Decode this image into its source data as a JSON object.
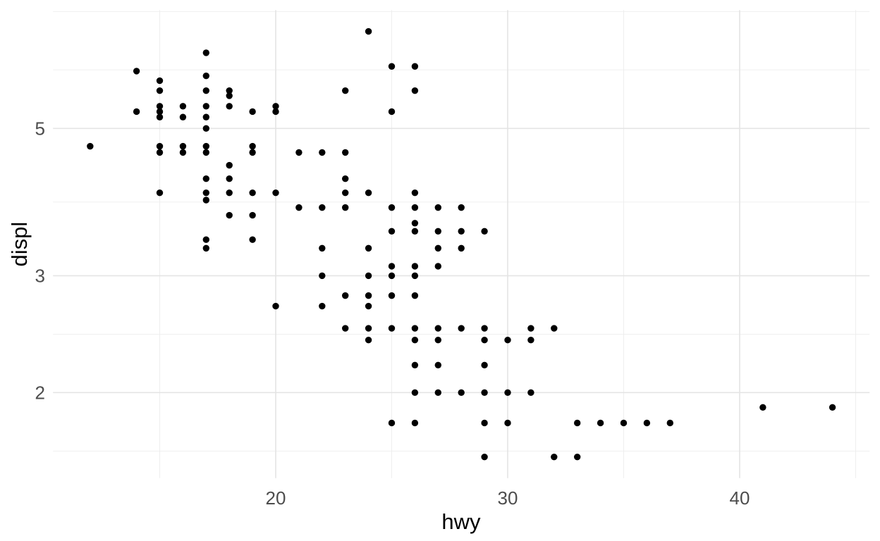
{
  "chart_data": {
    "type": "scatter",
    "title": "",
    "xlabel": "hwy",
    "ylabel": "displ",
    "x_axis": {
      "scale": "linear",
      "range": [
        10.4,
        45.6
      ],
      "ticks": [
        20,
        30,
        40
      ],
      "minor_ticks": [
        15,
        25,
        35,
        45
      ]
    },
    "y_axis": {
      "scale": "log10",
      "range": [
        1.4865,
        7.5357
      ],
      "ticks": [
        2,
        3,
        5
      ],
      "minor_ticks": [
        1.633,
        2.449,
        3.873,
        6.126,
        7.5
      ]
    },
    "grid": "on",
    "legend": "none",
    "points": [
      [
        12,
        4.7
      ],
      [
        14,
        5.3
      ],
      [
        14,
        6.1
      ],
      [
        15,
        4.0
      ],
      [
        15,
        4.6
      ],
      [
        15,
        4.7
      ],
      [
        15,
        5.2
      ],
      [
        15,
        5.3
      ],
      [
        15,
        5.4
      ],
      [
        15,
        5.7
      ],
      [
        15,
        5.9
      ],
      [
        16,
        4.6
      ],
      [
        16,
        4.7
      ],
      [
        16,
        5.2
      ],
      [
        16,
        5.4
      ],
      [
        17,
        3.3
      ],
      [
        17,
        3.4
      ],
      [
        17,
        3.9
      ],
      [
        17,
        4.0
      ],
      [
        17,
        4.2
      ],
      [
        17,
        4.6
      ],
      [
        17,
        4.7
      ],
      [
        17,
        5.0
      ],
      [
        17,
        5.2
      ],
      [
        17,
        5.4
      ],
      [
        17,
        5.7
      ],
      [
        17,
        6.0
      ],
      [
        17,
        6.5
      ],
      [
        18,
        3.7
      ],
      [
        18,
        4.0
      ],
      [
        18,
        4.2
      ],
      [
        18,
        4.4
      ],
      [
        18,
        5.4
      ],
      [
        18,
        5.6
      ],
      [
        18,
        5.7
      ],
      [
        19,
        3.4
      ],
      [
        19,
        3.7
      ],
      [
        19,
        4.0
      ],
      [
        19,
        4.6
      ],
      [
        19,
        4.7
      ],
      [
        19,
        5.3
      ],
      [
        20,
        2.7
      ],
      [
        20,
        4.0
      ],
      [
        20,
        5.3
      ],
      [
        20,
        5.4
      ],
      [
        21,
        3.8
      ],
      [
        21,
        4.6
      ],
      [
        22,
        2.7
      ],
      [
        22,
        3.0
      ],
      [
        22,
        3.3
      ],
      [
        22,
        3.8
      ],
      [
        22,
        4.6
      ],
      [
        23,
        2.5
      ],
      [
        23,
        2.8
      ],
      [
        23,
        3.8
      ],
      [
        23,
        4.0
      ],
      [
        23,
        4.2
      ],
      [
        23,
        4.6
      ],
      [
        23,
        5.7
      ],
      [
        24,
        2.4
      ],
      [
        24,
        2.5
      ],
      [
        24,
        2.7
      ],
      [
        24,
        2.8
      ],
      [
        24,
        3.0
      ],
      [
        24,
        3.3
      ],
      [
        24,
        4.0
      ],
      [
        24,
        7.0
      ],
      [
        25,
        1.8
      ],
      [
        25,
        2.5
      ],
      [
        25,
        2.8
      ],
      [
        25,
        3.0
      ],
      [
        25,
        3.1
      ],
      [
        25,
        3.5
      ],
      [
        25,
        3.8
      ],
      [
        25,
        5.3
      ],
      [
        25,
        6.2
      ],
      [
        26,
        1.8
      ],
      [
        26,
        2.0
      ],
      [
        26,
        2.2
      ],
      [
        26,
        2.4
      ],
      [
        26,
        2.5
      ],
      [
        26,
        2.8
      ],
      [
        26,
        3.0
      ],
      [
        26,
        3.1
      ],
      [
        26,
        3.5
      ],
      [
        26,
        3.6
      ],
      [
        26,
        3.8
      ],
      [
        26,
        4.0
      ],
      [
        26,
        5.7
      ],
      [
        26,
        6.2
      ],
      [
        27,
        2.0
      ],
      [
        27,
        2.2
      ],
      [
        27,
        2.4
      ],
      [
        27,
        2.5
      ],
      [
        27,
        3.1
      ],
      [
        27,
        3.3
      ],
      [
        27,
        3.5
      ],
      [
        27,
        3.8
      ],
      [
        28,
        2.0
      ],
      [
        28,
        2.5
      ],
      [
        28,
        3.3
      ],
      [
        28,
        3.5
      ],
      [
        28,
        3.8
      ],
      [
        29,
        1.6
      ],
      [
        29,
        1.8
      ],
      [
        29,
        2.0
      ],
      [
        29,
        2.2
      ],
      [
        29,
        2.4
      ],
      [
        29,
        2.5
      ],
      [
        29,
        3.5
      ],
      [
        30,
        1.8
      ],
      [
        30,
        2.0
      ],
      [
        30,
        2.4
      ],
      [
        31,
        2.0
      ],
      [
        31,
        2.4
      ],
      [
        31,
        2.5
      ],
      [
        32,
        1.6
      ],
      [
        32,
        2.5
      ],
      [
        33,
        1.6
      ],
      [
        33,
        1.8
      ],
      [
        34,
        1.8
      ],
      [
        35,
        1.8
      ],
      [
        36,
        1.8
      ],
      [
        37,
        1.8
      ],
      [
        41,
        1.9
      ],
      [
        44,
        1.9
      ]
    ]
  },
  "style": {
    "background": "#FFFFFF",
    "point_color": "#000000",
    "grid_major_color": "#E4E4E4",
    "grid_minor_color": "#EDEDED",
    "tick_label_color": "#4D4D4D",
    "axis_title_color": "#000000"
  }
}
